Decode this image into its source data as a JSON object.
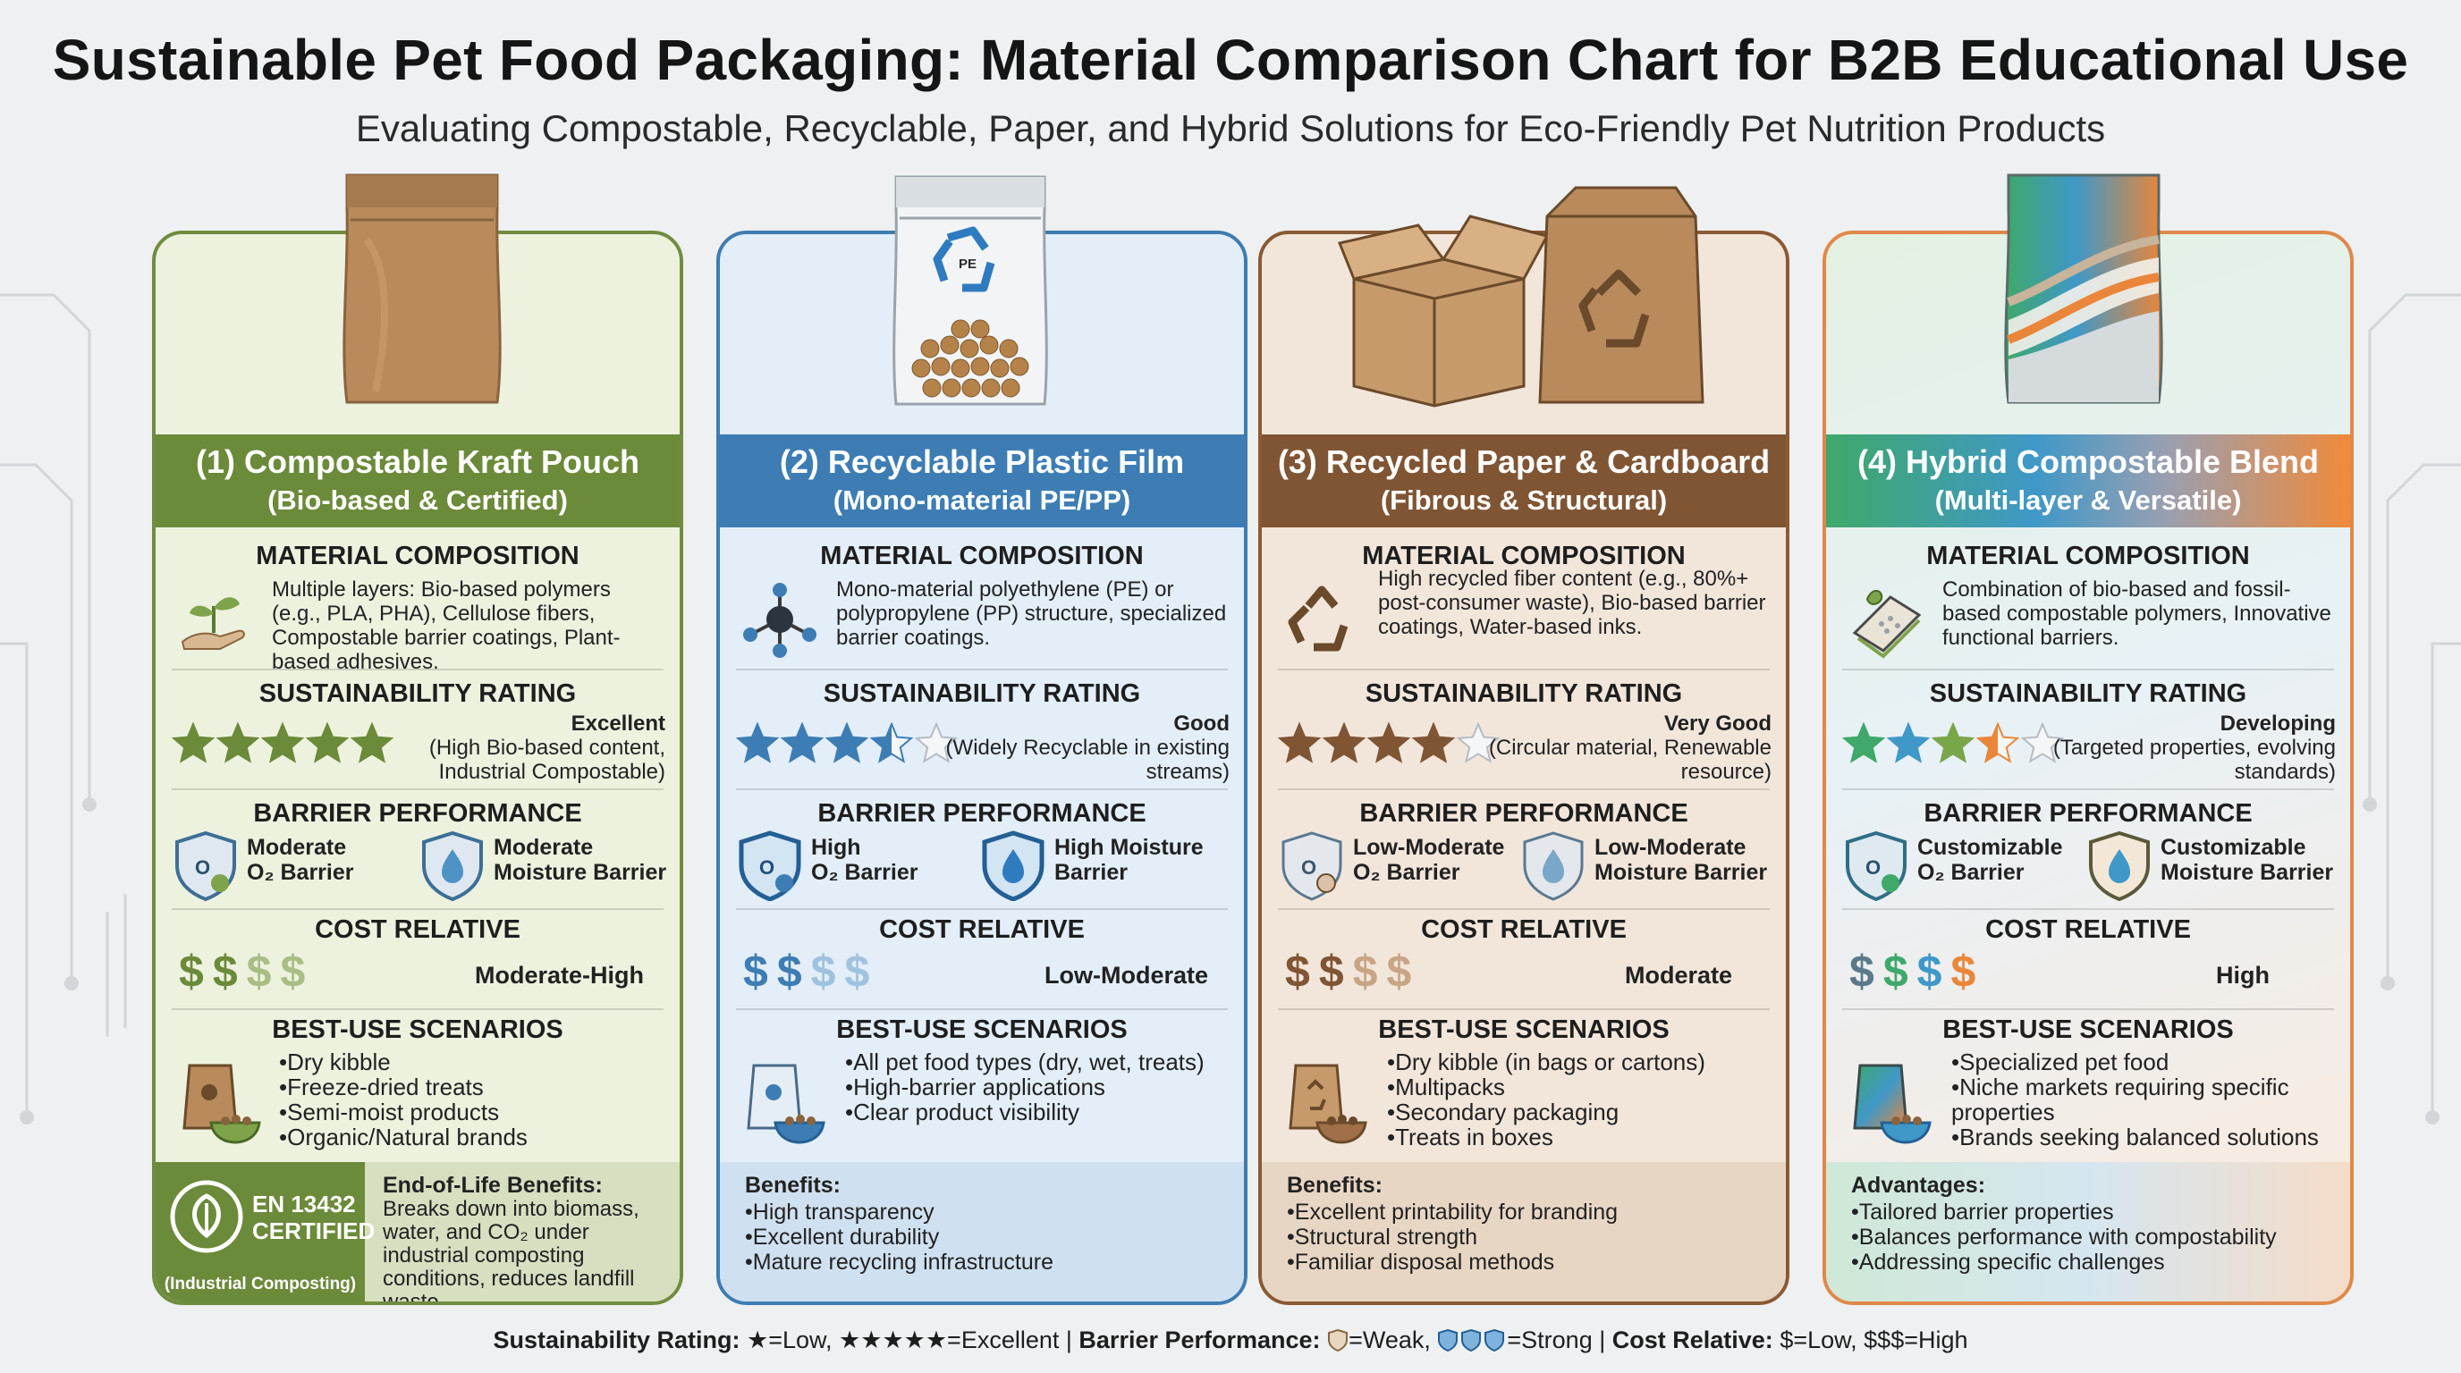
{
  "header": {
    "title": "Sustainable Pet Food Packaging: Material Comparison Chart for B2B Educational Use",
    "subtitle": "Evaluating Compostable, Recyclable, Paper, and Hybrid Solutions for Eco-Friendly Pet Nutrition Products"
  },
  "labels": {
    "composition": "MATERIAL COMPOSITION",
    "sustainability": "SUSTAINABILITY RATING",
    "barrier": "BARRIER PERFORMANCE",
    "cost": "COST RELATIVE",
    "scenarios": "BEST-USE SCENARIOS"
  },
  "cards": [
    {
      "title": "(1) Compostable Kraft Pouch",
      "subtitle": "(Bio-based & Certified)",
      "composition": "Multiple layers: Bio-based polymers (e.g., PLA, PHA), Cellulose fibers, Compostable barrier coatings, Plant-based adhesives.",
      "stars": 5,
      "rating": "Excellent",
      "rating_note": "(High Bio-based content, Industrial Compostable)",
      "o2_barrier": [
        "Moderate",
        "O₂ Barrier"
      ],
      "moisture_barrier": [
        "Moderate",
        "Moisture Barrier"
      ],
      "cost_dollars": 4,
      "cost_filled": 2,
      "cost": "Moderate-High",
      "scenarios": [
        "Dry kibble",
        "Freeze-dried treats",
        "Semi-moist products",
        "Organic/Natural brands"
      ],
      "certification": [
        "EN 13432",
        "CERTIFIED"
      ],
      "certification_note": "(Industrial Composting)",
      "footer_title": "End-of-Life Benefits:",
      "footer_text": "Breaks down into biomass, water, and CO₂ under industrial composting conditions, reduces landfill waste."
    },
    {
      "title": "(2) Recyclable Plastic Film",
      "subtitle": "(Mono-material PE/PP)",
      "composition": "Mono-material polyethylene (PE) or polypropylene (PP) structure, specialized barrier coatings.",
      "stars": 3.5,
      "rating": "Good",
      "rating_note": "(Widely Recyclable in existing streams)",
      "o2_barrier": [
        "High",
        "O₂ Barrier"
      ],
      "moisture_barrier": [
        "High Moisture",
        "Barrier"
      ],
      "cost_dollars": 4,
      "cost_filled": 2,
      "cost": "Low-Moderate",
      "scenarios": [
        "All pet food types (dry, wet, treats)",
        "High-barrier applications",
        "Clear product visibility"
      ],
      "footer_title": "Benefits:",
      "footer_items": [
        "High transparency",
        "Excellent durability",
        "Mature recycling infrastructure"
      ]
    },
    {
      "title": "(3) Recycled Paper & Cardboard",
      "subtitle": "(Fibrous & Structural)",
      "composition": "High recycled fiber content (e.g., 80%+ post-consumer waste), Bio-based barrier coatings, Water-based inks.",
      "stars": 4,
      "rating": "Very Good",
      "rating_note": "(Circular material, Renewable resource)",
      "o2_barrier": [
        "Low-Moderate",
        "O₂ Barrier"
      ],
      "moisture_barrier": [
        "Low-Moderate",
        "Moisture Barrier"
      ],
      "cost_dollars": 4,
      "cost_filled": 2,
      "cost": "Moderate",
      "scenarios": [
        "Dry kibble (in bags or cartons)",
        "Multipacks",
        "Secondary packaging",
        "Treats in boxes"
      ],
      "footer_title": "Benefits:",
      "footer_items": [
        "Excellent printability for branding",
        "Structural strength",
        "Familiar disposal methods"
      ]
    },
    {
      "title": "(4) Hybrid Compostable Blend",
      "subtitle": "(Multi-layer & Versatile)",
      "composition": "Combination of bio-based and fossil-based compostable polymers, Innovative functional barriers.",
      "stars": 3.5,
      "rating": "Developing",
      "rating_note": "(Targeted properties, evolving standards)",
      "o2_barrier": [
        "Customizable",
        "O₂ Barrier"
      ],
      "moisture_barrier": [
        "Customizable",
        "Moisture Barrier"
      ],
      "cost_dollars": 4,
      "cost_filled": 4,
      "cost": "High",
      "scenarios": [
        "Specialized pet food",
        "Niche markets requiring specific properties",
        "Brands seeking balanced solutions"
      ],
      "footer_title": "Advantages:",
      "footer_items": [
        "Tailored barrier properties",
        "Balances performance with compostability",
        "Addressing specific challenges"
      ]
    }
  ],
  "colors": {
    "card1": "#6b8a3a",
    "card2": "#3d7db4",
    "card3": "#7f5534",
    "card4": "#f08a3a"
  },
  "legend": {
    "sust_label": "Sustainability Rating:",
    "sust_text": "★=Low, ★★★★★=Excellent |",
    "barrier_label": "Barrier Performance:",
    "barrier_text": "=Weak,",
    "barrier_text2": "=Strong |",
    "cost_label": "Cost Relative:",
    "cost_text": "$=Low, $$$=High"
  }
}
